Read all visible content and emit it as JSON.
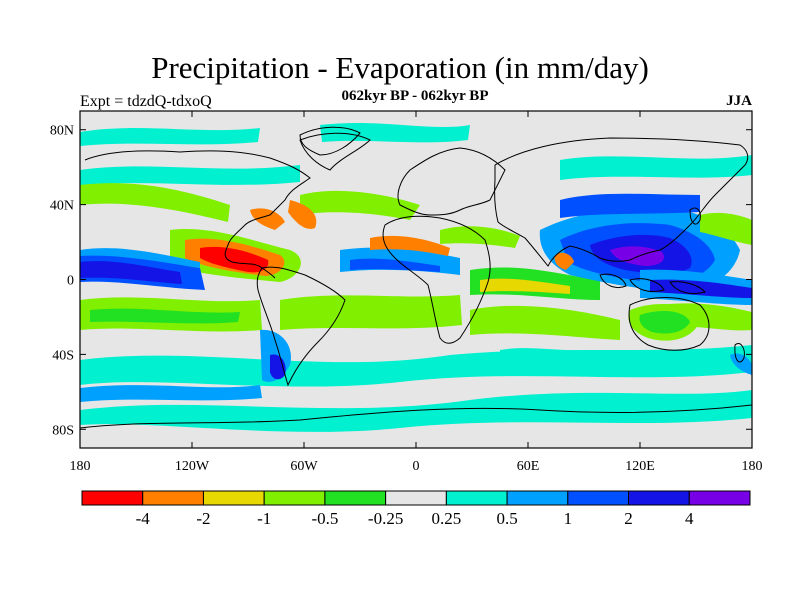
{
  "figure": {
    "title": "Precipitation - Evaporation (in mm/day)",
    "subtitle": "062kyr BP - 062kyr BP",
    "left_label": "Expt = tdzdQ-tdxoQ",
    "right_label": "JJA"
  },
  "map_data": {
    "projection": "cylindrical-equidistant",
    "lon_range": [
      -180,
      180
    ],
    "lat_range": [
      -90,
      90
    ],
    "lon_ticks": [
      {
        "value": -180,
        "label": "180"
      },
      {
        "value": -120,
        "label": "120W"
      },
      {
        "value": -60,
        "label": "60W"
      },
      {
        "value": 0,
        "label": "0"
      },
      {
        "value": 60,
        "label": "60E"
      },
      {
        "value": 120,
        "label": "120E"
      },
      {
        "value": 180,
        "label": "180"
      }
    ],
    "lat_ticks": [
      {
        "value": 80,
        "label": "80N"
      },
      {
        "value": 40,
        "label": "40N"
      },
      {
        "value": 0,
        "label": "0"
      },
      {
        "value": -40,
        "label": "40S"
      },
      {
        "value": -80,
        "label": "80S"
      }
    ],
    "background_color": "#e6e6e6"
  },
  "colorbar": {
    "colors": [
      "#ff0000",
      "#ff8000",
      "#e6d800",
      "#80f000",
      "#22e022",
      "#e6e6e6",
      "#00f0d0",
      "#00a0ff",
      "#0050ff",
      "#1414e6",
      "#7800e6"
    ],
    "boundary_labels": [
      "-4",
      "-2",
      "-1",
      "-0.5",
      "-0.25",
      "0.25",
      "0.5",
      "1",
      "2",
      "4"
    ]
  }
}
